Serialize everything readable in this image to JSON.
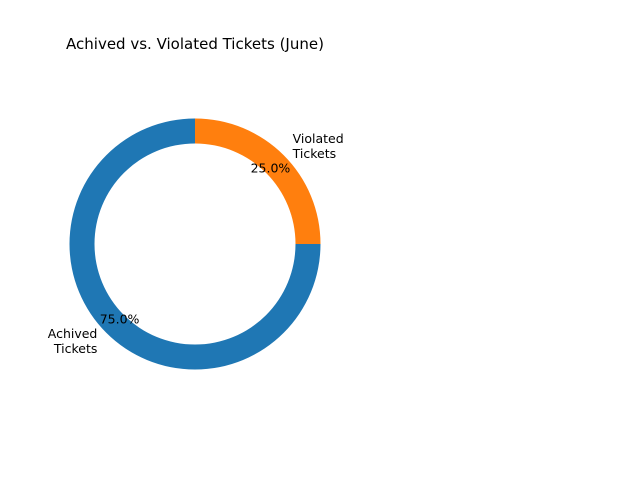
{
  "chart_data": {
    "type": "pie",
    "style": "donut",
    "title": "Achived vs. Violated Tickets (June)",
    "slices": [
      {
        "label": "Violated\nTickets",
        "value": 25.0,
        "pct_label": "25.0%",
        "color": "#ff7f0e"
      },
      {
        "label": "Achived\nTickets",
        "value": 75.0,
        "pct_label": "75.0%",
        "color": "#1f77b4"
      }
    ]
  }
}
